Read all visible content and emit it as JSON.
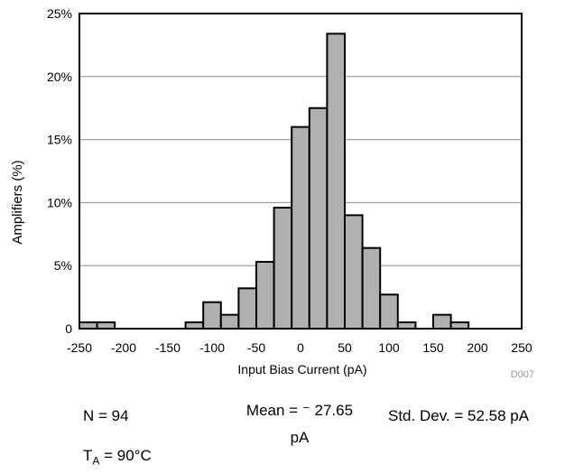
{
  "chart_data": {
    "type": "bar",
    "xlabel": "Input Bias Current (pA)",
    "ylabel": "Amplifiers (%)",
    "xlim": [
      -250,
      250
    ],
    "ylim": [
      0,
      25
    ],
    "bin_width": 20,
    "x_ticks": [
      "-250",
      "-200",
      "-150",
      "-100",
      "-50",
      "0",
      "50",
      "100",
      "150",
      "200",
      "250"
    ],
    "x_tick_values": [
      -250,
      -200,
      -150,
      -100,
      -50,
      0,
      50,
      100,
      150,
      200,
      250
    ],
    "y_ticks": [
      "0",
      "5%",
      "10%",
      "15%",
      "20%",
      "25%"
    ],
    "y_tick_values": [
      0,
      5,
      10,
      15,
      20,
      25
    ],
    "grid": true,
    "bar_color": "#b0b0b0",
    "bins": [
      -240,
      -220,
      -200,
      -180,
      -160,
      -140,
      -120,
      -100,
      -80,
      -60,
      -40,
      -20,
      0,
      20,
      40,
      60,
      80,
      100,
      120,
      140,
      160,
      180,
      200,
      220
    ],
    "values": [
      0.5,
      0.5,
      0,
      0,
      0,
      0,
      0.5,
      2.1,
      1.1,
      3.2,
      5.3,
      9.6,
      16.0,
      17.5,
      23.4,
      9.0,
      6.4,
      2.7,
      0.5,
      0,
      1.1,
      0.5,
      0,
      0
    ],
    "figure_id": "D007"
  },
  "stats": {
    "n": "N = 94",
    "mean_line1": "Mean = ⁻ 27.65",
    "mean_line2": "pA",
    "std": "Std. Dev. = 52.58 pA",
    "ta_prefix": "T",
    "ta_sub": "A",
    "ta_suffix": " = 90°C"
  }
}
